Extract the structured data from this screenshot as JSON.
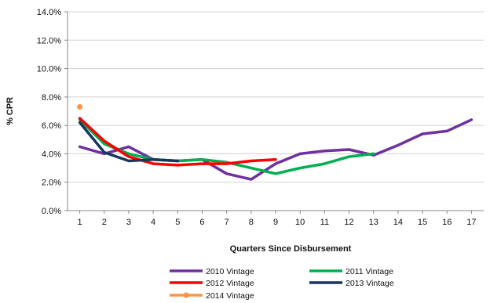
{
  "chart_data": {
    "type": "line",
    "xlabel": "Quarters Since Disbursement",
    "ylabel": "% CPR",
    "x": [
      1,
      2,
      3,
      4,
      5,
      6,
      7,
      8,
      9,
      10,
      11,
      12,
      13,
      14,
      15,
      16,
      17
    ],
    "x_tick_labels": [
      "1",
      "2",
      "3",
      "4",
      "5",
      "6",
      "7",
      "8",
      "9",
      "10",
      "11",
      "12",
      "13",
      "14",
      "15",
      "16",
      "17"
    ],
    "ylim": [
      0,
      14
    ],
    "y_ticks": [
      0,
      2,
      4,
      6,
      8,
      10,
      12,
      14
    ],
    "y_tick_labels": [
      "0.0%",
      "2.0%",
      "4.0%",
      "6.0%",
      "8.0%",
      "10.0%",
      "12.0%",
      "14.0%"
    ],
    "grid": "horizontal",
    "legend_position": "bottom",
    "series": [
      {
        "name": "2010 Vintage",
        "color": "#7030a0",
        "x": [
          1,
          2,
          3,
          4,
          5,
          6,
          7,
          8,
          9,
          10,
          11,
          12,
          13,
          14,
          15,
          16,
          17
        ],
        "values": [
          4.5,
          4.0,
          4.5,
          3.6,
          3.5,
          3.6,
          2.6,
          2.2,
          3.3,
          4.0,
          4.2,
          4.3,
          3.9,
          4.6,
          5.4,
          5.6,
          6.4
        ]
      },
      {
        "name": "2011 Vintage",
        "color": "#00b050",
        "x": [
          1,
          2,
          3,
          4,
          5,
          6,
          7,
          8,
          9,
          10,
          11,
          12,
          13
        ],
        "values": [
          6.4,
          4.7,
          4.0,
          3.6,
          3.5,
          3.6,
          3.4,
          3.0,
          2.6,
          3.0,
          3.3,
          3.8,
          4.0
        ]
      },
      {
        "name": "2012 Vintage",
        "color": "#ff0000",
        "x": [
          1,
          2,
          3,
          4,
          5,
          6,
          7,
          8,
          9
        ],
        "values": [
          6.5,
          4.9,
          3.8,
          3.3,
          3.2,
          3.3,
          3.3,
          3.5,
          3.6
        ]
      },
      {
        "name": "2013 Vintage",
        "color": "#17375e",
        "x": [
          1,
          2,
          3,
          4,
          5
        ],
        "values": [
          6.2,
          4.1,
          3.5,
          3.6,
          3.5
        ]
      },
      {
        "name": "2014 Vintage",
        "color": "#f79646",
        "x": [
          1
        ],
        "values": [
          7.3
        ],
        "marker": "circle"
      }
    ]
  }
}
